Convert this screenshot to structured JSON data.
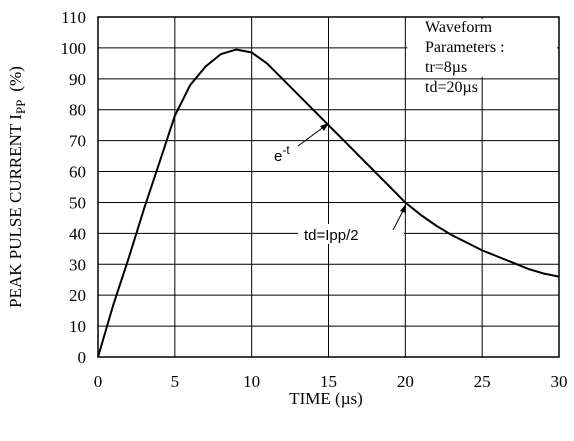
{
  "chart_data": {
    "type": "line",
    "xlabel": "TIME  (µs)",
    "ylabel": "PEAK PULSE CURRENT I",
    "ylabel_sub": "PP",
    "ylabel_unit": "(%)",
    "xlim": [
      0,
      30
    ],
    "ylim": [
      0,
      110
    ],
    "xticks": [
      "0",
      "5",
      "10",
      "15",
      "20",
      "25",
      "30"
    ],
    "yticks": [
      "0",
      "10",
      "20",
      "30",
      "40",
      "50",
      "60",
      "70",
      "80",
      "90",
      "100",
      "110"
    ],
    "grid": true,
    "series": [
      {
        "x": [
          0,
          1,
          2,
          3,
          4,
          5,
          6,
          7,
          8,
          9,
          10,
          11,
          12,
          13,
          14,
          15,
          16,
          17,
          18,
          19,
          20,
          21,
          22,
          23,
          24,
          25,
          26,
          27,
          28,
          29,
          30
        ],
        "y": [
          0,
          17,
          32,
          48,
          63,
          78,
          88,
          94,
          98,
          99.5,
          98.5,
          95,
          90,
          85,
          80,
          75,
          70,
          65,
          60,
          55,
          50,
          46,
          42.5,
          39.5,
          37,
          34.5,
          32.5,
          30.5,
          28.5,
          27,
          26
        ]
      }
    ],
    "legend_box": {
      "lines": [
        "Waveform",
        "Parameters :",
        "tr=8µs",
        "td=20µs"
      ]
    },
    "annotations": {
      "et_base": "e",
      "et_exp": "-t",
      "td": "td=Ipp/2"
    }
  }
}
